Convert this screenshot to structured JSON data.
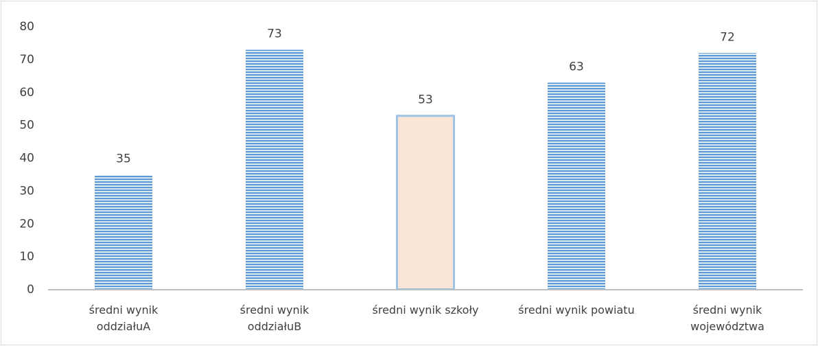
{
  "chart_data": {
    "type": "bar",
    "categories": [
      "średni wynik oddziałuA",
      "średni wynik oddziałuB",
      "średni wynik szkoły",
      "średni wynik powiatu",
      "średni wynik województwa"
    ],
    "values": [
      35,
      73,
      53,
      63,
      72
    ],
    "colors": [
      "#5b9bd5",
      "#5b9bd5",
      "#fbe5d6",
      "#5b9bd5",
      "#5b9bd5"
    ],
    "bar_styles": [
      "striped",
      "striped",
      "solid",
      "striped",
      "striped"
    ],
    "ylim": [
      0,
      80
    ],
    "yticks": [
      0,
      10,
      20,
      30,
      40,
      50,
      60,
      70,
      80
    ],
    "grid": false
  }
}
